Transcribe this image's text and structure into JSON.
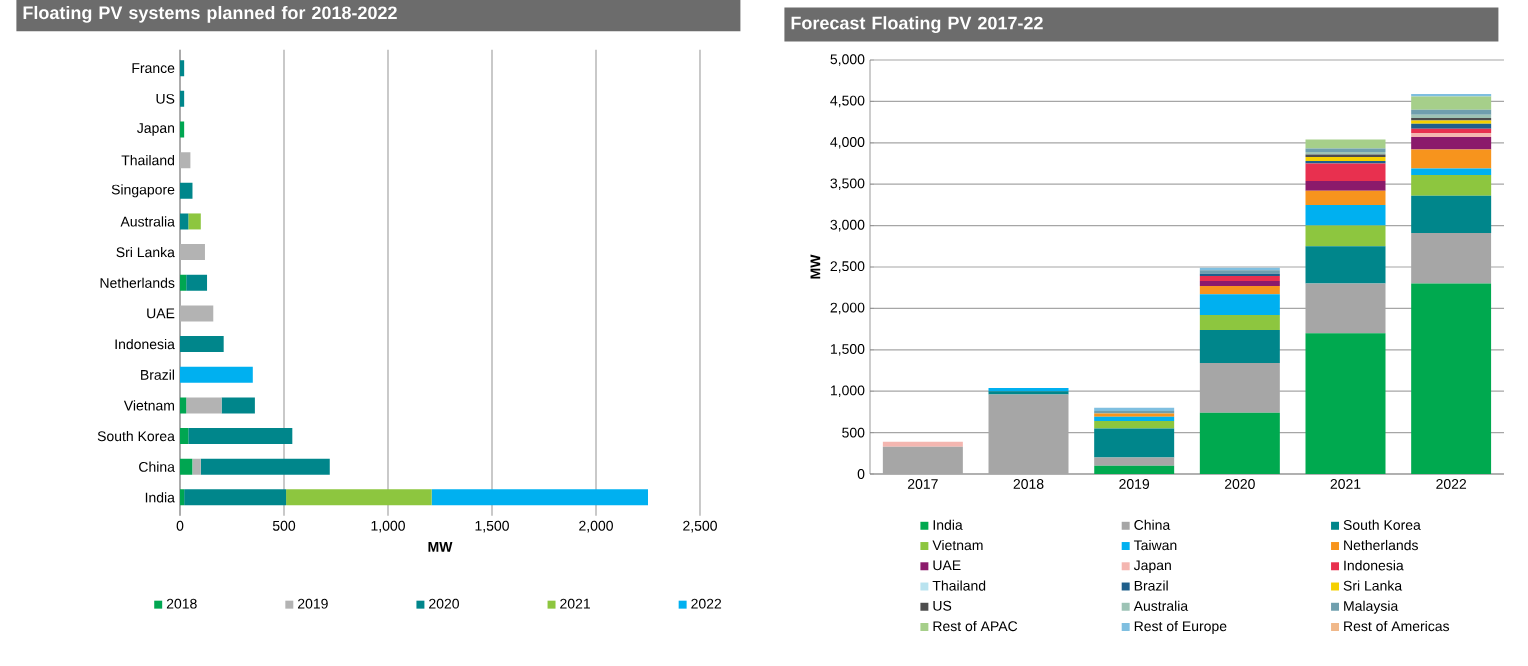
{
  "chart_data": [
    {
      "type": "bar",
      "orientation": "horizontal",
      "stacked": true,
      "title": "Floating PV systems planned for 2018-2022",
      "xlabel": "MW",
      "categories": [
        "France",
        "US",
        "Japan",
        "Thailand",
        "Singapore",
        "Australia",
        "Sri Lanka",
        "Netherlands",
        "UAE",
        "Indonesia",
        "Brazil",
        "Vietnam",
        "South Korea",
        "China",
        "India"
      ],
      "series": [
        {
          "name": "2018",
          "color": "#00a651",
          "values": [
            null,
            null,
            20,
            null,
            null,
            null,
            null,
            30,
            null,
            null,
            null,
            30,
            40,
            60,
            20
          ]
        },
        {
          "name": "2019",
          "color": "#b3b3b3",
          "values": [
            null,
            null,
            null,
            50,
            null,
            null,
            120,
            null,
            160,
            null,
            null,
            170,
            null,
            40,
            null
          ]
        },
        {
          "name": "2020",
          "color": "#00868b",
          "values": [
            20,
            20,
            null,
            null,
            60,
            40,
            null,
            100,
            null,
            210,
            null,
            160,
            500,
            620,
            490
          ]
        },
        {
          "name": "2021",
          "color": "#8dc63f",
          "values": [
            null,
            null,
            null,
            null,
            null,
            60,
            null,
            null,
            null,
            null,
            null,
            null,
            null,
            null,
            700
          ]
        },
        {
          "name": "2022",
          "color": "#00b0f0",
          "values": [
            null,
            null,
            null,
            null,
            null,
            null,
            null,
            null,
            null,
            null,
            350,
            null,
            null,
            null,
            1040
          ]
        }
      ],
      "xlim": [
        0,
        2500
      ],
      "xticks": [
        0,
        500,
        {
          "value": 1000,
          "label": "1,000"
        },
        {
          "value": 1500,
          "label": "1,500"
        },
        {
          "value": 2000,
          "label": "2,000"
        },
        {
          "value": 2500,
          "label": "2,500"
        }
      ],
      "grid": "x",
      "legend": "bottom"
    },
    {
      "type": "bar",
      "stacked": true,
      "title": "Forecast Floating PV 2017-22",
      "ylabel": "MW",
      "categories": [
        "2017",
        "2018",
        "2019",
        "2020",
        "2021",
        "2022"
      ],
      "series": [
        {
          "name": "India",
          "color": "#00a94f",
          "values": [
            null,
            null,
            100,
            740,
            1700,
            2300
          ]
        },
        {
          "name": "China",
          "color": "#a6a6a6",
          "values": [
            330,
            960,
            100,
            600,
            600,
            610
          ]
        },
        {
          "name": "South Korea",
          "color": "#00868b",
          "values": [
            null,
            40,
            350,
            400,
            450,
            450
          ]
        },
        {
          "name": "Vietnam",
          "color": "#8dc63f",
          "values": [
            null,
            null,
            90,
            180,
            250,
            250
          ]
        },
        {
          "name": "Taiwan",
          "color": "#00b0f0",
          "values": [
            null,
            40,
            50,
            250,
            250,
            80
          ]
        },
        {
          "name": "Netherlands",
          "color": "#f7941d",
          "values": [
            null,
            null,
            40,
            100,
            170,
            230
          ]
        },
        {
          "name": "UAE",
          "color": "#8b1a6b",
          "values": [
            null,
            null,
            null,
            60,
            120,
            150
          ]
        },
        {
          "name": "Japan",
          "color": "#f4b6b0",
          "values": [
            60,
            null,
            null,
            null,
            null,
            50
          ]
        },
        {
          "name": "Indonesia",
          "color": "#e8304f",
          "values": [
            null,
            null,
            null,
            60,
            210,
            50
          ]
        },
        {
          "name": "Thailand",
          "color": "#b9e3ef",
          "values": [
            null,
            null,
            null,
            null,
            null,
            null
          ]
        },
        {
          "name": "Brazil",
          "color": "#1f5f8b",
          "values": [
            null,
            null,
            null,
            30,
            30,
            60
          ]
        },
        {
          "name": "Sri Lanka",
          "color": "#f5d000",
          "values": [
            null,
            null,
            null,
            null,
            50,
            40
          ]
        },
        {
          "name": "US",
          "color": "#4d4d4d",
          "values": [
            null,
            null,
            null,
            null,
            30,
            30
          ]
        },
        {
          "name": "Australia",
          "color": "#9dc3b5",
          "values": [
            null,
            null,
            null,
            null,
            30,
            40
          ]
        },
        {
          "name": "Malaysia",
          "color": "#6f9fae",
          "values": [
            null,
            null,
            30,
            40,
            40,
            60
          ]
        },
        {
          "name": "Rest of APAC",
          "color": "#a6cf8a",
          "values": [
            null,
            null,
            null,
            null,
            110,
            160
          ]
        },
        {
          "name": "Rest of Europe",
          "color": "#7fbfe0",
          "values": [
            null,
            null,
            40,
            30,
            null,
            30
          ]
        },
        {
          "name": "Rest of Americas",
          "color": "#f0b88a",
          "values": [
            null,
            null,
            null,
            null,
            null,
            null
          ]
        }
      ],
      "ylim": [
        0,
        5000
      ],
      "yticks": [
        0,
        500,
        {
          "value": 1000,
          "label": "1,000"
        },
        {
          "value": 1500,
          "label": "1,500"
        },
        {
          "value": 2000,
          "label": "2,000"
        },
        {
          "value": 2500,
          "label": "2,500"
        },
        {
          "value": 3000,
          "label": "3,000"
        },
        {
          "value": 3500,
          "label": "3,500"
        },
        {
          "value": 4000,
          "label": "4,000"
        },
        {
          "value": 4500,
          "label": "4,500"
        },
        {
          "value": 5000,
          "label": "5,000"
        }
      ],
      "grid": "y",
      "legend": "bottom"
    }
  ]
}
